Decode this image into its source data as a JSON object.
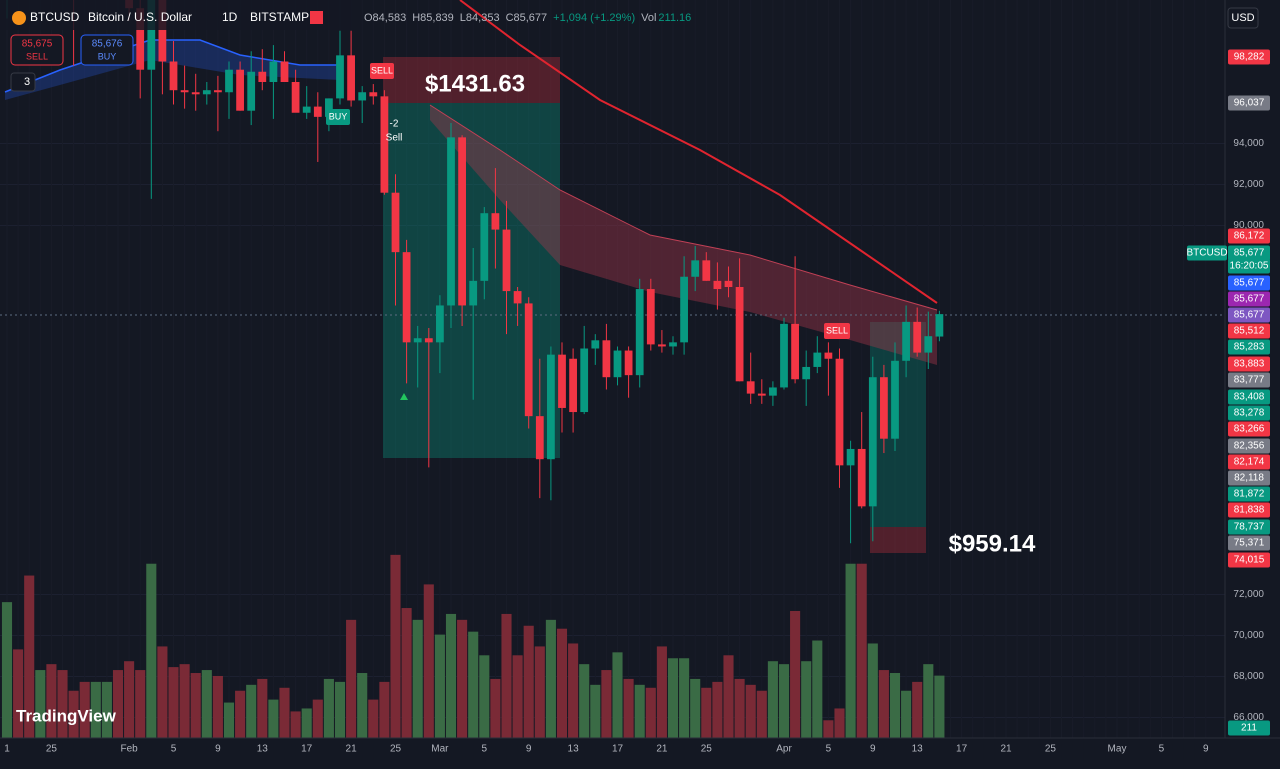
{
  "legend": {
    "symbol": "BTCUSD",
    "description": "Bitcoin / U.S. Dollar",
    "interval": "1D",
    "exchange": "BITSTAMP",
    "ohlc": [
      "O84,583",
      "H85,839",
      "L84,353",
      "C85,677",
      "+1,094 (+1.29%)"
    ],
    "volume_title": "Vol",
    "volume": "211.16"
  },
  "trade": {
    "sell_price": "85,675",
    "sell": "SELL",
    "buy_price": "85,676",
    "buy": "BUY",
    "indicators": "3"
  },
  "currency": "USD",
  "brand": "TradingView",
  "annotations": {
    "short_profit": "$1431.63",
    "long_profit": "$959.14",
    "sell_1": "SELL",
    "buy_1": "BUY",
    "signal": "-2",
    "signal_text": "Sell",
    "sell_2": "SELL"
  },
  "price_labels": [
    {
      "label": "98,282",
      "color": "#f23645"
    },
    {
      "label": "96,037",
      "color": "#787b86"
    },
    {
      "label": "86,172",
      "color": "#f23645"
    },
    {
      "label": "BTCUSD",
      "color": "#089981"
    },
    {
      "label": "85,677",
      "color": "#089981"
    },
    {
      "label": "16:20:05",
      "color": "#089981"
    },
    {
      "label": "85,677",
      "color": "#2962ff"
    },
    {
      "label": "85,677",
      "color": "#9c27b0"
    },
    {
      "label": "85,677",
      "color": "#7e57c2"
    },
    {
      "label": "85,512",
      "color": "#f23645"
    },
    {
      "label": "85,283",
      "color": "#089981"
    },
    {
      "label": "83,883",
      "color": "#f23645"
    },
    {
      "label": "83,777",
      "color": "#787b86"
    },
    {
      "label": "83,408",
      "color": "#089981"
    },
    {
      "label": "83,278",
      "color": "#089981"
    },
    {
      "label": "83,266",
      "color": "#f23645"
    },
    {
      "label": "82,356",
      "color": "#787b86"
    },
    {
      "label": "82,174",
      "color": "#f23645"
    },
    {
      "label": "82,118",
      "color": "#787b86"
    },
    {
      "label": "81,872",
      "color": "#089981"
    },
    {
      "label": "81,838",
      "color": "#f23645"
    },
    {
      "label": "78,737",
      "color": "#089981"
    },
    {
      "label": "75,371",
      "color": "#787b86"
    },
    {
      "label": "74,015",
      "color": "#f23645"
    },
    {
      "label": "211",
      "color": "#089981"
    }
  ],
  "chart_data": {
    "type": "candlestick",
    "categories": [
      "1",
      null,
      null,
      null,
      "25",
      null,
      null,
      null,
      null,
      null,
      null,
      "Feb",
      null,
      null,
      null,
      "5",
      null,
      null,
      null,
      "9",
      null,
      null,
      null,
      "13",
      null,
      null,
      null,
      "17",
      null,
      null,
      null,
      "21",
      null,
      null,
      null,
      "25",
      null,
      null,
      null,
      "Mar",
      null,
      null,
      null,
      "5",
      null,
      null,
      null,
      "9",
      null,
      null,
      null,
      "13",
      null,
      null,
      null,
      "17",
      null,
      null,
      null,
      "21",
      null,
      null,
      null,
      "25",
      null,
      null,
      null,
      null,
      null,
      null,
      "Apr",
      null,
      null,
      null,
      "5",
      null,
      null,
      null,
      "9",
      null,
      null,
      null,
      "13",
      null,
      null,
      null,
      "17",
      null,
      null,
      null,
      "21",
      null,
      null,
      null,
      "25",
      null,
      null,
      null,
      null,
      null,
      "May",
      null,
      null,
      null,
      "5",
      null,
      null,
      null,
      "9"
    ],
    "open": [
      102000,
      105500,
      104100,
      103900,
      104800,
      104700,
      102600,
      102100,
      101300,
      103700,
      104700,
      102400,
      100600,
      97600,
      101300,
      98000,
      96600,
      96500,
      96400,
      96600,
      96500,
      97600,
      95600,
      97500,
      97000,
      98000,
      97000,
      95500,
      95800,
      95300,
      96200,
      98300,
      96100,
      96500,
      96300,
      91600,
      88700,
      84300,
      84500,
      84300,
      86100,
      94300,
      86100,
      87300,
      90600,
      89800,
      86800,
      86200,
      80700,
      78600,
      83700,
      83500,
      80900,
      84000,
      84400,
      82600,
      83900,
      82700,
      86900,
      84200,
      84100,
      84300,
      87500,
      88300,
      87300,
      87300,
      87000,
      82400,
      81800,
      81700,
      82100,
      85200,
      82500,
      83100,
      83800,
      83500,
      78300,
      79100,
      76300,
      82600,
      79600,
      83400,
      85300,
      83800,
      84583,
      null,
      null,
      null,
      null,
      null,
      null,
      null,
      null,
      null,
      null,
      null,
      null,
      null,
      null,
      null,
      null,
      null,
      null,
      null,
      null,
      null,
      null,
      null,
      null
    ],
    "high": [
      106000,
      107000,
      106300,
      105400,
      105300,
      105000,
      103200,
      104800,
      103800,
      106500,
      106000,
      102900,
      101500,
      101700,
      102500,
      99000,
      97800,
      97400,
      97000,
      97300,
      98000,
      98000,
      98500,
      98600,
      98800,
      98500,
      97600,
      96800,
      96500,
      96200,
      99500,
      99500,
      96800,
      96900,
      96600,
      92500,
      89300,
      85100,
      85000,
      86600,
      95000,
      94400,
      88900,
      90900,
      92800,
      91200,
      87000,
      86500,
      83500,
      84100,
      84300,
      84000,
      85100,
      84700,
      85200,
      84100,
      84100,
      87400,
      87400,
      84900,
      84600,
      88500,
      89000,
      88700,
      88200,
      88000,
      88400,
      83800,
      82500,
      82400,
      85500,
      88500,
      83900,
      84600,
      84300,
      84000,
      79500,
      80900,
      83600,
      83200,
      84300,
      86100,
      86000,
      85800,
      85839,
      null,
      null,
      null,
      null,
      null,
      null,
      null,
      null,
      null,
      null,
      null,
      null,
      null,
      null,
      null,
      null,
      null,
      null,
      null,
      null,
      null,
      null,
      null,
      null
    ],
    "low": [
      100100,
      103900,
      103000,
      103200,
      102500,
      101800,
      97800,
      101300,
      101000,
      103500,
      101500,
      100000,
      96200,
      91300,
      96400,
      95900,
      95700,
      95600,
      95900,
      94600,
      95200,
      95600,
      94900,
      96600,
      95200,
      97000,
      95600,
      95200,
      93100,
      94600,
      95900,
      95800,
      95000,
      95900,
      91500,
      86100,
      82300,
      82100,
      78200,
      82800,
      85000,
      85100,
      81500,
      86400,
      87900,
      84700,
      85100,
      80100,
      76700,
      76600,
      79900,
      79900,
      80800,
      83200,
      82000,
      82200,
      81600,
      82100,
      83900,
      83800,
      83700,
      83700,
      86800,
      87300,
      85900,
      86500,
      82400,
      81300,
      81300,
      81200,
      82000,
      82300,
      81200,
      82800,
      81700,
      77200,
      74500,
      76200,
      74600,
      78900,
      79000,
      82600,
      83600,
      83000,
      84353,
      null,
      null,
      null,
      null,
      null,
      null,
      null,
      null,
      null,
      null,
      null,
      null,
      null,
      null,
      null,
      null,
      null,
      null,
      null,
      null,
      null,
      null,
      null,
      null
    ],
    "close": [
      105500,
      104100,
      103900,
      104800,
      104700,
      102600,
      102100,
      101300,
      103700,
      104700,
      102400,
      100600,
      97600,
      101300,
      98000,
      96600,
      96500,
      96400,
      96600,
      96500,
      97600,
      95600,
      97500,
      97000,
      98000,
      97000,
      95500,
      95800,
      95300,
      96200,
      98300,
      96100,
      96500,
      96300,
      91600,
      88700,
      84300,
      84500,
      84300,
      86100,
      94300,
      86100,
      87300,
      90600,
      89800,
      86800,
      86200,
      80700,
      78600,
      83700,
      81100,
      80900,
      84000,
      84400,
      82600,
      83900,
      82700,
      86900,
      84200,
      84100,
      84300,
      87500,
      88300,
      87300,
      86900,
      87000,
      82400,
      81800,
      81700,
      82100,
      85200,
      82500,
      83100,
      83800,
      83500,
      78300,
      79100,
      76300,
      82600,
      79600,
      83400,
      85300,
      83800,
      84600,
      85677,
      null,
      null,
      null,
      null,
      null,
      null,
      null,
      null,
      null,
      null,
      null,
      null,
      null,
      null,
      null,
      null,
      null,
      null,
      null,
      null,
      null,
      null,
      null,
      null
    ],
    "volume": [
      460,
      300,
      550,
      230,
      250,
      230,
      160,
      190,
      190,
      190,
      230,
      260,
      230,
      590,
      310,
      240,
      250,
      220,
      230,
      210,
      120,
      160,
      180,
      200,
      130,
      170,
      90,
      100,
      130,
      200,
      190,
      400,
      220,
      130,
      190,
      620,
      440,
      400,
      520,
      350,
      420,
      400,
      360,
      280,
      200,
      420,
      280,
      380,
      310,
      400,
      370,
      320,
      250,
      180,
      230,
      290,
      200,
      180,
      170,
      310,
      270,
      270,
      200,
      170,
      190,
      280,
      200,
      180,
      160,
      260,
      250,
      430,
      260,
      330,
      60,
      100,
      590,
      590,
      320,
      230,
      220,
      160,
      190,
      250,
      211.16,
      null,
      null,
      null,
      null,
      null,
      null,
      null,
      null,
      null,
      null,
      null,
      null,
      null,
      null,
      null,
      null,
      null,
      null,
      null,
      null,
      null,
      null,
      null,
      null
    ],
    "up_color": "#089981",
    "down_color": "#f23645",
    "volume_up_color": "#3a6b45",
    "volume_down_color": "#7a2a36",
    "ylim": [
      65000,
      101000
    ],
    "vlim": [
      0,
      650
    ],
    "yticks": [
      {
        "value": 94000,
        "label": "94,000"
      },
      {
        "value": 92000,
        "label": "92,000"
      },
      {
        "value": 90000,
        "label": "90,000"
      },
      {
        "value": 72000,
        "label": "72,000"
      },
      {
        "value": 70000,
        "label": "70,000"
      },
      {
        "value": 68000,
        "label": "68,000"
      },
      {
        "value": 66000,
        "label": "66,000"
      }
    ],
    "grid": true
  }
}
